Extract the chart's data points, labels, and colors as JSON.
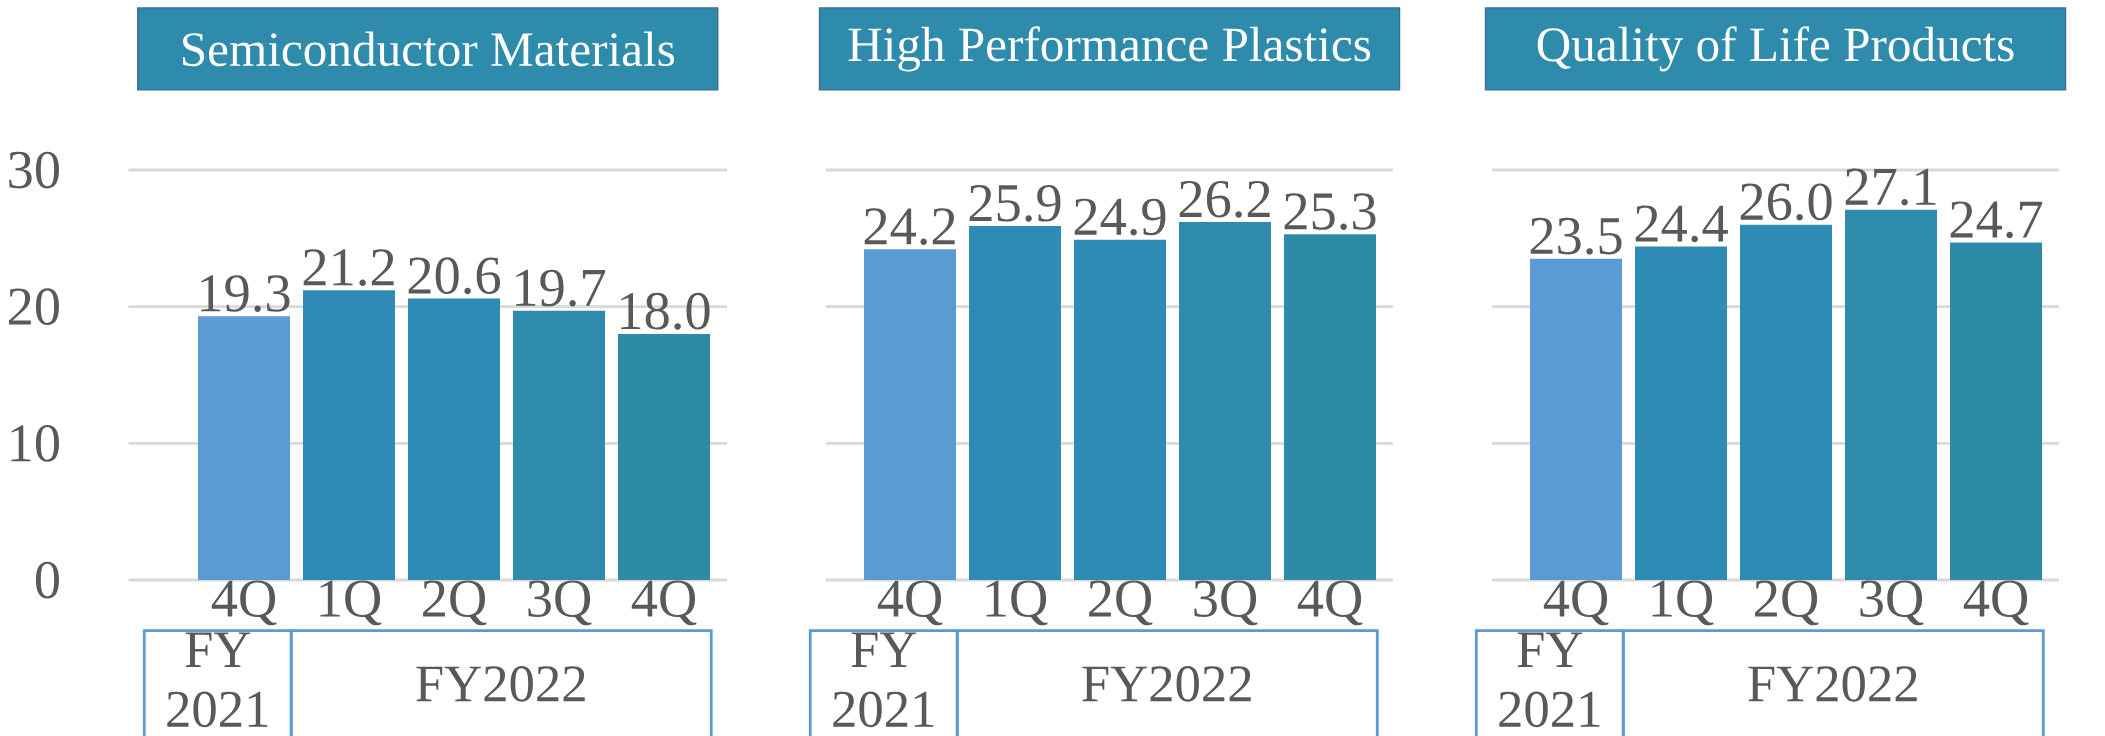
{
  "chart_data": [
    {
      "type": "bar",
      "title": "Semiconductor Materials",
      "categories": [
        "4Q",
        "1Q",
        "2Q",
        "3Q",
        "4Q"
      ],
      "values": [
        19.3,
        21.2,
        20.6,
        19.7,
        18.0
      ],
      "value_labels": [
        "19.3",
        "21.2",
        "20.6",
        "19.7",
        "18.0"
      ],
      "colors": [
        "#5b9bd5",
        "#2e8bb5",
        "#2e8bb4",
        "#2e8bac",
        "#2e8ba8"
      ],
      "ylim": [
        0,
        30
      ],
      "yticks": [
        0,
        10,
        20,
        30
      ],
      "grid": "y",
      "annotations": [
        "FY 2021",
        "FY2022"
      ]
    },
    {
      "type": "bar",
      "title": "High Performance Plastics",
      "categories": [
        "4Q",
        "1Q",
        "2Q",
        "3Q",
        "4Q"
      ],
      "values": [
        24.2,
        25.9,
        24.9,
        26.2,
        25.3
      ],
      "value_labels": [
        "24.2",
        "25.9",
        "24.9",
        "26.2",
        "25.3"
      ],
      "colors": [
        "#5b9bd5",
        "#2e8bb5",
        "#2e8bb4",
        "#2e8bac",
        "#2e8ba8"
      ],
      "ylim": [
        0,
        30
      ],
      "yticks": [
        0,
        10,
        20,
        30
      ],
      "grid": "y",
      "tick_labels": "x",
      "annotations": [
        "FY 2021",
        "FY2022"
      ]
    },
    {
      "type": "bar",
      "title": "Quality of Life Products",
      "categories": [
        "4Q",
        "1Q",
        "2Q",
        "3Q",
        "4Q"
      ],
      "values": [
        23.5,
        24.4,
        26.0,
        27.1,
        24.7
      ],
      "value_labels": [
        "23.5",
        "24.4",
        "26.0",
        "27.1",
        "24.7"
      ],
      "colors": [
        "#5b9bd5",
        "#2e8bb5",
        "#2e8bb4",
        "#2e8bac",
        "#2e8ba8"
      ],
      "ylim": [
        0,
        30
      ],
      "yticks": [
        0,
        10,
        20,
        30
      ],
      "grid": "y",
      "tick_labels": "x",
      "annotations": [
        "FY 2021",
        "FY2022"
      ]
    }
  ]
}
